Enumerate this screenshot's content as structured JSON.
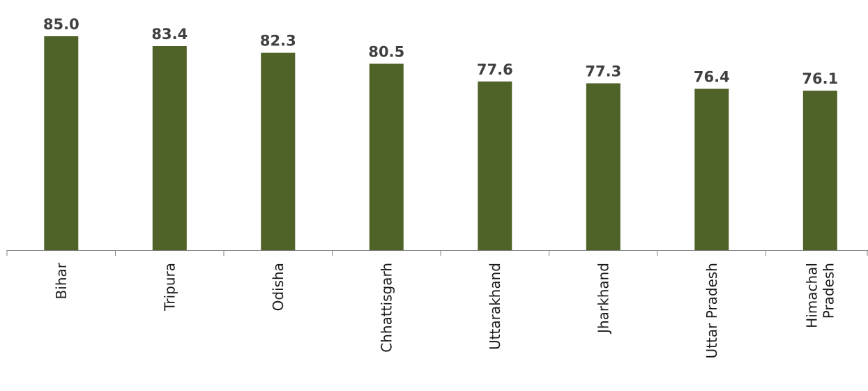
{
  "chart_data": {
    "type": "bar",
    "title": "",
    "xlabel": "",
    "ylabel": "",
    "categories": [
      [
        "Bihar"
      ],
      [
        "Tripura"
      ],
      [
        "Odisha"
      ],
      [
        "Chhattisgarh"
      ],
      [
        "Uttarakhand"
      ],
      [
        "Jharkhand"
      ],
      [
        "Uttar Pradesh"
      ],
      [
        "Himachal",
        "Pradesh"
      ]
    ],
    "values": [
      85.0,
      83.4,
      82.3,
      80.5,
      77.6,
      77.3,
      76.4,
      76.1
    ],
    "value_labels": [
      "85.0",
      "83.4",
      "82.3",
      "80.5",
      "77.6",
      "77.3",
      "76.4",
      "76.1"
    ],
    "ylim": [
      50,
      85
    ],
    "bar_color": "#4f6228",
    "label_color": "#404040",
    "axis_color": "#808080",
    "grid": false,
    "legend": "none"
  }
}
